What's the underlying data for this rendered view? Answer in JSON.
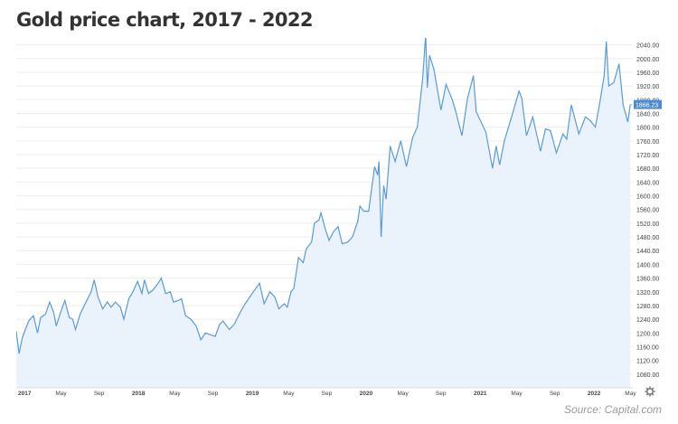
{
  "header": {
    "title": "Gold price chart, 2017 - 2022"
  },
  "footer": {
    "source": "Source: Capital.com"
  },
  "colors": {
    "line": "#5b9bd5",
    "area_fill": "#eaf2fb",
    "badge_bg": "#4a8ccf",
    "axis_text": "#444444",
    "grid": "#eeeeee"
  },
  "icons": {
    "settings": "gear-icon"
  },
  "chart_data": {
    "type": "area",
    "title": "Gold price chart, 2017 - 2022",
    "xlabel": "",
    "ylabel": "",
    "xlim": [
      "2017-01-01",
      "2022-06-01"
    ],
    "ylim": [
      1040,
      2060
    ],
    "grid": true,
    "y_axis_position": "right",
    "current_value_label": "1866.23",
    "y_ticks": [
      "2040.00",
      "2000.00",
      "1960.00",
      "1920.00",
      "1880.00",
      "1840.00",
      "1800.00",
      "1760.00",
      "1720.00",
      "1680.00",
      "1640.00",
      "1600.00",
      "1560.00",
      "1520.00",
      "1480.00",
      "1440.00",
      "1400.00",
      "1360.00",
      "1320.00",
      "1280.00",
      "1240.00",
      "1200.00",
      "1160.00",
      "1120.00",
      "1080.00"
    ],
    "x_ticks": [
      {
        "date": "2017-01-01",
        "label": "2017",
        "bold": true
      },
      {
        "date": "2017-05-01",
        "label": "May",
        "bold": false
      },
      {
        "date": "2017-09-01",
        "label": "Sep",
        "bold": false
      },
      {
        "date": "2018-01-01",
        "label": "2018",
        "bold": true
      },
      {
        "date": "2018-05-01",
        "label": "May",
        "bold": false
      },
      {
        "date": "2018-09-01",
        "label": "Sep",
        "bold": false
      },
      {
        "date": "2019-01-01",
        "label": "2019",
        "bold": true
      },
      {
        "date": "2019-05-01",
        "label": "May",
        "bold": false
      },
      {
        "date": "2019-09-01",
        "label": "Sep",
        "bold": false
      },
      {
        "date": "2020-01-01",
        "label": "2020",
        "bold": true
      },
      {
        "date": "2020-05-01",
        "label": "May",
        "bold": false
      },
      {
        "date": "2020-09-01",
        "label": "Sep",
        "bold": false
      },
      {
        "date": "2021-01-01",
        "label": "2021",
        "bold": true
      },
      {
        "date": "2021-05-01",
        "label": "May",
        "bold": false
      },
      {
        "date": "2021-09-01",
        "label": "Sep",
        "bold": false
      },
      {
        "date": "2022-01-01",
        "label": "2022",
        "bold": true
      },
      {
        "date": "2022-05-01",
        "label": "May",
        "bold": false
      }
    ],
    "series": [
      {
        "color": "#5b9bd5",
        "points": [
          [
            "2017-01-01",
            1205
          ],
          [
            "2017-01-10",
            1140
          ],
          [
            "2017-01-20",
            1185
          ],
          [
            "2017-01-30",
            1210
          ],
          [
            "2017-02-10",
            1235
          ],
          [
            "2017-02-25",
            1250
          ],
          [
            "2017-03-10",
            1200
          ],
          [
            "2017-03-20",
            1245
          ],
          [
            "2017-04-05",
            1255
          ],
          [
            "2017-04-18",
            1290
          ],
          [
            "2017-05-01",
            1260
          ],
          [
            "2017-05-09",
            1220
          ],
          [
            "2017-05-25",
            1265
          ],
          [
            "2017-06-06",
            1295
          ],
          [
            "2017-06-20",
            1245
          ],
          [
            "2017-07-01",
            1240
          ],
          [
            "2017-07-10",
            1210
          ],
          [
            "2017-07-25",
            1255
          ],
          [
            "2017-08-10",
            1285
          ],
          [
            "2017-08-29",
            1320
          ],
          [
            "2017-09-08",
            1355
          ],
          [
            "2017-09-20",
            1305
          ],
          [
            "2017-10-05",
            1270
          ],
          [
            "2017-10-20",
            1290
          ],
          [
            "2017-11-01",
            1275
          ],
          [
            "2017-11-15",
            1290
          ],
          [
            "2017-12-01",
            1275
          ],
          [
            "2017-12-12",
            1240
          ],
          [
            "2017-12-28",
            1300
          ],
          [
            "2018-01-10",
            1320
          ],
          [
            "2018-01-25",
            1350
          ],
          [
            "2018-02-08",
            1315
          ],
          [
            "2018-02-16",
            1355
          ],
          [
            "2018-03-01",
            1315
          ],
          [
            "2018-03-15",
            1325
          ],
          [
            "2018-04-01",
            1345
          ],
          [
            "2018-04-11",
            1360
          ],
          [
            "2018-04-25",
            1315
          ],
          [
            "2018-05-10",
            1320
          ],
          [
            "2018-05-20",
            1290
          ],
          [
            "2018-06-05",
            1295
          ],
          [
            "2018-06-15",
            1300
          ],
          [
            "2018-06-28",
            1250
          ],
          [
            "2018-07-15",
            1240
          ],
          [
            "2018-08-01",
            1220
          ],
          [
            "2018-08-16",
            1180
          ],
          [
            "2018-08-30",
            1200
          ],
          [
            "2018-09-15",
            1195
          ],
          [
            "2018-10-01",
            1190
          ],
          [
            "2018-10-15",
            1225
          ],
          [
            "2018-10-26",
            1235
          ],
          [
            "2018-11-15",
            1210
          ],
          [
            "2018-12-01",
            1225
          ],
          [
            "2018-12-20",
            1260
          ],
          [
            "2019-01-05",
            1285
          ],
          [
            "2019-01-31",
            1320
          ],
          [
            "2019-02-20",
            1345
          ],
          [
            "2019-03-07",
            1285
          ],
          [
            "2019-03-25",
            1320
          ],
          [
            "2019-04-10",
            1305
          ],
          [
            "2019-04-23",
            1270
          ],
          [
            "2019-05-10",
            1285
          ],
          [
            "2019-05-20",
            1275
          ],
          [
            "2019-06-01",
            1320
          ],
          [
            "2019-06-10",
            1330
          ],
          [
            "2019-06-25",
            1420
          ],
          [
            "2019-07-10",
            1405
          ],
          [
            "2019-07-20",
            1445
          ],
          [
            "2019-08-06",
            1465
          ],
          [
            "2019-08-15",
            1520
          ],
          [
            "2019-08-30",
            1530
          ],
          [
            "2019-09-05",
            1550
          ],
          [
            "2019-09-20",
            1500
          ],
          [
            "2019-10-01",
            1470
          ],
          [
            "2019-10-15",
            1495
          ],
          [
            "2019-10-30",
            1510
          ],
          [
            "2019-11-12",
            1460
          ],
          [
            "2019-11-30",
            1465
          ],
          [
            "2019-12-15",
            1480
          ],
          [
            "2020-01-01",
            1525
          ],
          [
            "2020-01-08",
            1570
          ],
          [
            "2020-01-20",
            1555
          ],
          [
            "2020-02-05",
            1555
          ],
          [
            "2020-02-24",
            1685
          ],
          [
            "2020-03-05",
            1660
          ],
          [
            "2020-03-09",
            1700
          ],
          [
            "2020-03-16",
            1480
          ],
          [
            "2020-03-24",
            1630
          ],
          [
            "2020-04-01",
            1590
          ],
          [
            "2020-04-14",
            1745
          ],
          [
            "2020-04-30",
            1700
          ],
          [
            "2020-05-18",
            1760
          ],
          [
            "2020-06-05",
            1685
          ],
          [
            "2020-06-25",
            1770
          ],
          [
            "2020-07-10",
            1800
          ],
          [
            "2020-07-27",
            1940
          ],
          [
            "2020-08-06",
            2070
          ],
          [
            "2020-08-11",
            1915
          ],
          [
            "2020-08-18",
            2010
          ],
          [
            "2020-09-01",
            1970
          ],
          [
            "2020-09-24",
            1850
          ],
          [
            "2020-10-10",
            1925
          ],
          [
            "2020-10-30",
            1880
          ],
          [
            "2020-11-09",
            1850
          ],
          [
            "2020-11-30",
            1775
          ],
          [
            "2020-12-18",
            1885
          ],
          [
            "2021-01-06",
            1950
          ],
          [
            "2021-01-15",
            1845
          ],
          [
            "2021-02-15",
            1785
          ],
          [
            "2021-03-08",
            1680
          ],
          [
            "2021-03-20",
            1745
          ],
          [
            "2021-03-31",
            1690
          ],
          [
            "2021-04-15",
            1760
          ],
          [
            "2021-05-10",
            1835
          ],
          [
            "2021-06-01",
            1905
          ],
          [
            "2021-06-10",
            1885
          ],
          [
            "2021-06-25",
            1775
          ],
          [
            "2021-07-15",
            1830
          ],
          [
            "2021-08-09",
            1730
          ],
          [
            "2021-08-25",
            1795
          ],
          [
            "2021-09-10",
            1790
          ],
          [
            "2021-09-29",
            1725
          ],
          [
            "2021-10-20",
            1780
          ],
          [
            "2021-11-01",
            1765
          ],
          [
            "2021-11-16",
            1865
          ],
          [
            "2021-12-10",
            1780
          ],
          [
            "2021-12-31",
            1830
          ],
          [
            "2022-01-15",
            1820
          ],
          [
            "2022-02-01",
            1800
          ],
          [
            "2022-02-15",
            1870
          ],
          [
            "2022-03-01",
            1950
          ],
          [
            "2022-03-08",
            2050
          ],
          [
            "2022-03-16",
            1920
          ],
          [
            "2022-04-01",
            1930
          ],
          [
            "2022-04-18",
            1985
          ],
          [
            "2022-05-01",
            1865
          ],
          [
            "2022-05-16",
            1815
          ],
          [
            "2022-05-24",
            1866
          ]
        ]
      }
    ]
  }
}
